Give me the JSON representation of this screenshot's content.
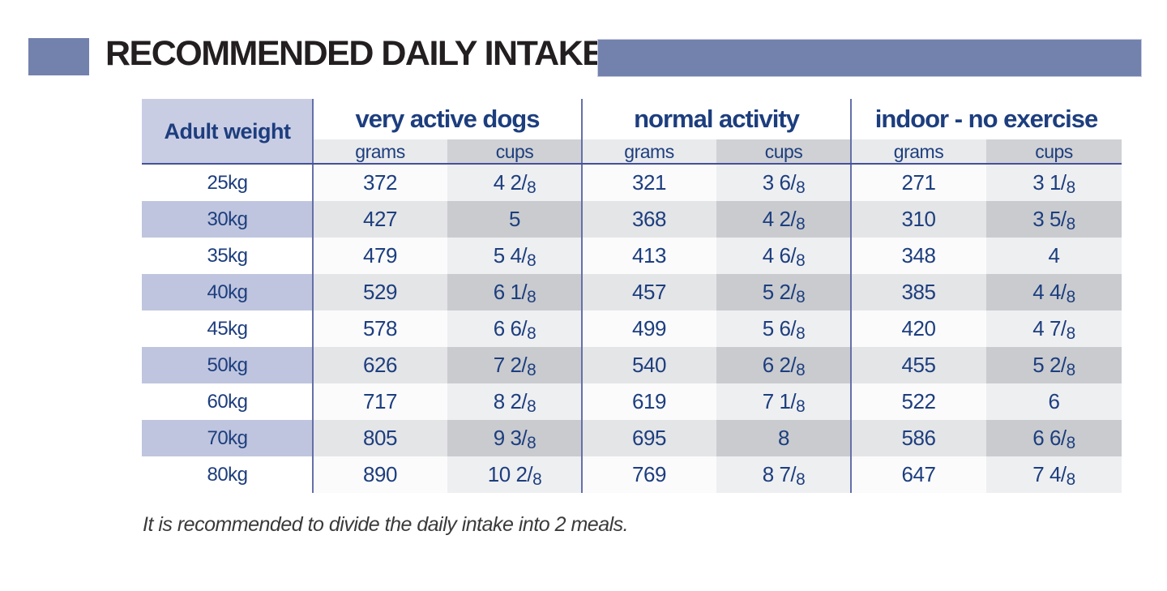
{
  "title": "RECOMMENDED DAILY INTAKE",
  "table": {
    "weight_header": "Adult weight",
    "groups": [
      {
        "label": "very active dogs"
      },
      {
        "label": "normal activity"
      },
      {
        "label": "indoor - no exercise"
      }
    ],
    "subheaders": {
      "grams": "grams",
      "cups": "cups"
    },
    "rows": [
      {
        "weight": "25kg",
        "values": [
          "372",
          "4 2/8",
          "321",
          "3 6/8",
          "271",
          "3 1/8"
        ]
      },
      {
        "weight": "30kg",
        "values": [
          "427",
          "5",
          "368",
          "4 2/8",
          "310",
          "3 5/8"
        ]
      },
      {
        "weight": "35kg",
        "values": [
          "479",
          "5 4/8",
          "413",
          "4 6/8",
          "348",
          "4"
        ]
      },
      {
        "weight": "40kg",
        "values": [
          "529",
          "6 1/8",
          "457",
          "5 2/8",
          "385",
          "4 4/8"
        ]
      },
      {
        "weight": "45kg",
        "values": [
          "578",
          "6 6/8",
          "499",
          "5 6/8",
          "420",
          "4 7/8"
        ]
      },
      {
        "weight": "50kg",
        "values": [
          "626",
          "7 2/8",
          "540",
          "6 2/8",
          "455",
          "5 2/8"
        ]
      },
      {
        "weight": "60kg",
        "values": [
          "717",
          "8 2/8",
          "619",
          "7 1/8",
          "522",
          "6"
        ]
      },
      {
        "weight": "70kg",
        "values": [
          "805",
          "9 3/8",
          "695",
          "8",
          "586",
          "6 6/8"
        ]
      },
      {
        "weight": "80kg",
        "values": [
          "890",
          "10 2/8",
          "769",
          "8 7/8",
          "647",
          "7 4/8"
        ]
      }
    ]
  },
  "footnote": "It is recommended to divide the daily intake into 2 meals.",
  "colors": {
    "accent_bar": "#7381ad",
    "weight_header_bg": "#c9cde4",
    "row_shade_lavender": "#bfc5de",
    "navy_text": "#1d3e7e",
    "rule_line": "#44519a",
    "subheader_grams_bg": "#e9eaec",
    "subheader_cups_bg": "#d0d1d4"
  }
}
